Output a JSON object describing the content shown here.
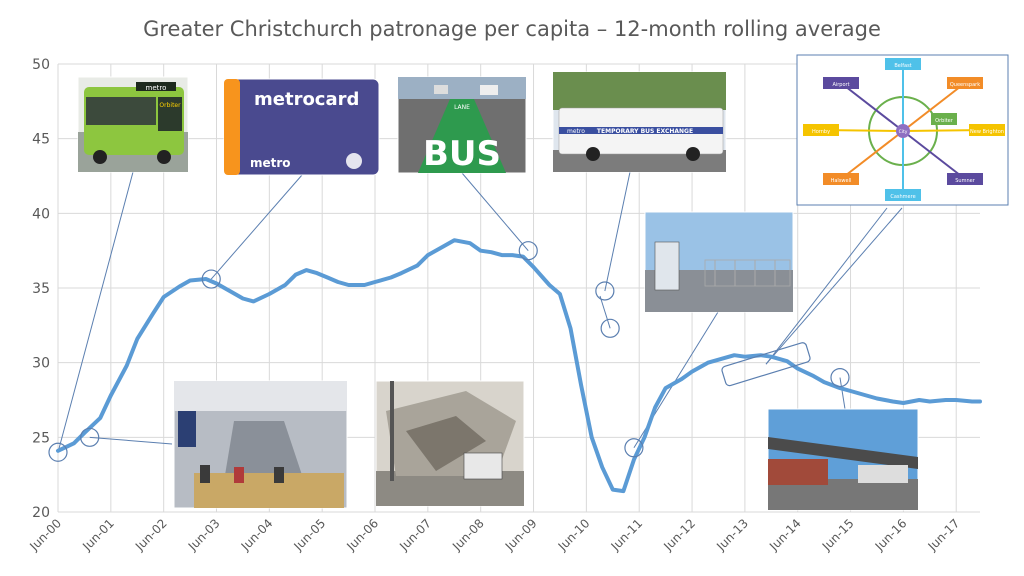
{
  "chart_data": {
    "type": "line",
    "title": "Greater Christchurch patronage per capita – 12-month rolling average",
    "xlabel": "",
    "ylabel": "",
    "ylim": [
      20,
      50
    ],
    "yticks": [
      20,
      25,
      30,
      35,
      40,
      45,
      50
    ],
    "grid": true,
    "legend": "none",
    "x_tick_labels": [
      "Jun-00",
      "Jun-01",
      "Jun-02",
      "Jun-03",
      "Jun-04",
      "Jun-05",
      "Jun-06",
      "Jun-07",
      "Jun-08",
      "Jun-09",
      "Jun-10",
      "Jun-11",
      "Jun-12",
      "Jun-13",
      "Jun-14",
      "Jun-15",
      "Jun-16",
      "Jun-17"
    ],
    "x_range": [
      2000.5,
      2017.95
    ],
    "line_color": "#5b9bd5",
    "series": [
      {
        "x": [
          2000.5,
          2000.8,
          2001.0,
          2001.3,
          2001.5,
          2001.8,
          2002.0,
          2002.3,
          2002.5,
          2002.8,
          2003.0,
          2003.3,
          2003.5,
          2003.8,
          2004.0,
          2004.2,
          2004.5,
          2004.8,
          2005.0,
          2005.2,
          2005.4,
          2005.6,
          2005.8,
          2006.0,
          2006.3,
          2006.5,
          2006.8,
          2007.0,
          2007.3,
          2007.5,
          2007.8,
          2008.0,
          2008.3,
          2008.5,
          2008.7,
          2008.9,
          2009.1,
          2009.3,
          2009.5,
          2009.8,
          2010.0,
          2010.2,
          2010.4,
          2010.6,
          2010.8,
          2011.0,
          2011.2,
          2011.4,
          2011.6,
          2011.8,
          2012.0,
          2012.3,
          2012.5,
          2012.8,
          2013.0,
          2013.3,
          2013.5,
          2013.8,
          2014.0,
          2014.3,
          2014.5,
          2014.8,
          2015.0,
          2015.3,
          2015.5,
          2015.8,
          2016.0,
          2016.3,
          2016.5,
          2016.8,
          2017.0,
          2017.3,
          2017.5,
          2017.8,
          2017.95
        ],
        "values": [
          24.1,
          24.6,
          25.3,
          26.3,
          27.8,
          29.8,
          31.6,
          33.3,
          34.4,
          35.1,
          35.5,
          35.6,
          35.3,
          34.7,
          34.3,
          34.1,
          34.6,
          35.2,
          35.9,
          36.2,
          36.0,
          35.7,
          35.4,
          35.2,
          35.2,
          35.4,
          35.7,
          36.0,
          36.5,
          37.2,
          37.8,
          38.2,
          38.0,
          37.5,
          37.4,
          37.2,
          37.2,
          37.1,
          36.4,
          35.2,
          34.6,
          32.3,
          28.5,
          25.0,
          23.0,
          21.5,
          21.4,
          23.5,
          25.0,
          27.0,
          28.3,
          28.9,
          29.4,
          30.0,
          30.2,
          30.5,
          30.4,
          30.5,
          30.4,
          30.1,
          29.6,
          29.1,
          28.7,
          28.3,
          28.1,
          27.8,
          27.6,
          27.4,
          27.3,
          27.5,
          27.4,
          27.5,
          27.5,
          27.4,
          27.4
        ]
      }
    ],
    "annotations": [
      {
        "marker": "circle",
        "x": 2000.5,
        "y": 24.0
      },
      {
        "marker": "circle",
        "x": 2001.1,
        "y": 25.0
      },
      {
        "marker": "circle",
        "x": 2003.4,
        "y": 35.6
      },
      {
        "marker": "circle",
        "x": 2009.4,
        "y": 37.5
      },
      {
        "marker": "circle",
        "x": 2010.85,
        "y": 34.8
      },
      {
        "marker": "circle",
        "x": 2010.95,
        "y": 32.3
      },
      {
        "marker": "circle",
        "x": 2011.4,
        "y": 24.3
      },
      {
        "marker": "ellipse",
        "x": 2013.9,
        "y": 29.9
      },
      {
        "marker": "circle",
        "x": 2015.3,
        "y": 29.0
      }
    ]
  },
  "photos": [
    {
      "id": "orbiter-bus",
      "sign_text": "metro",
      "route_text": "Orbiter"
    },
    {
      "id": "metrocard",
      "brand_text": "metrocard",
      "logo_text": "metro"
    },
    {
      "id": "bus-lane",
      "road_text": "BUS",
      "lane_text": "LANE"
    },
    {
      "id": "temp-bus-exchange",
      "bus_text": "TEMPORARY BUS EXCHANGE",
      "logo_text": "metro"
    },
    {
      "id": "interim-station"
    },
    {
      "id": "network-diagram",
      "nodes": [
        "Belfast",
        "Airport",
        "Queenspark",
        "Hornby",
        "City",
        "Orbiter",
        "New Brighton",
        "Halswell",
        "Sumner",
        "Cashmere"
      ]
    },
    {
      "id": "bus-interchange-interior"
    },
    {
      "id": "earthquake-damage"
    },
    {
      "id": "new-bus-interchange"
    }
  ]
}
